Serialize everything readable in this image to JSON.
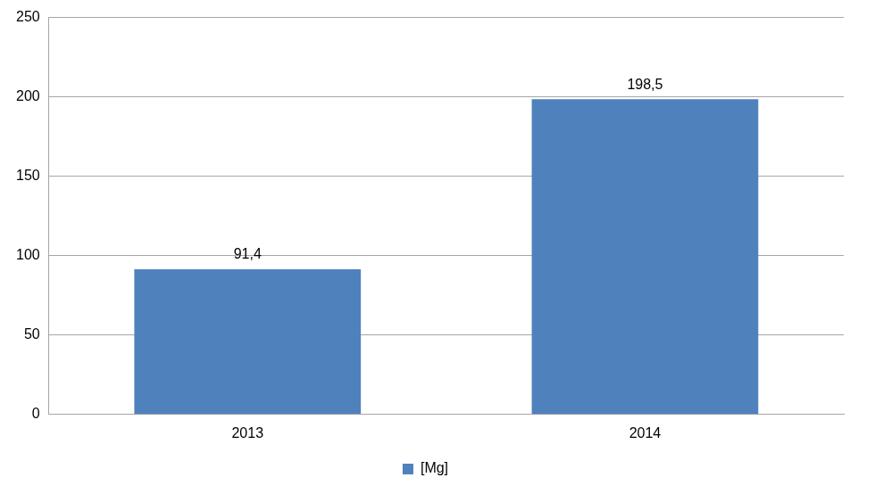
{
  "chart_data": {
    "type": "bar",
    "categories": [
      "2013",
      "2014"
    ],
    "series": [
      {
        "name": "[Mg]",
        "color": "#4f81bd",
        "values": [
          91.4,
          198.5
        ],
        "value_labels": [
          "91,4",
          "198,5"
        ]
      }
    ],
    "ylim": [
      0,
      250
    ],
    "yticks": [
      0,
      50,
      100,
      150,
      200,
      250
    ],
    "grid": true,
    "legend": "bottom",
    "data_labels": true
  }
}
